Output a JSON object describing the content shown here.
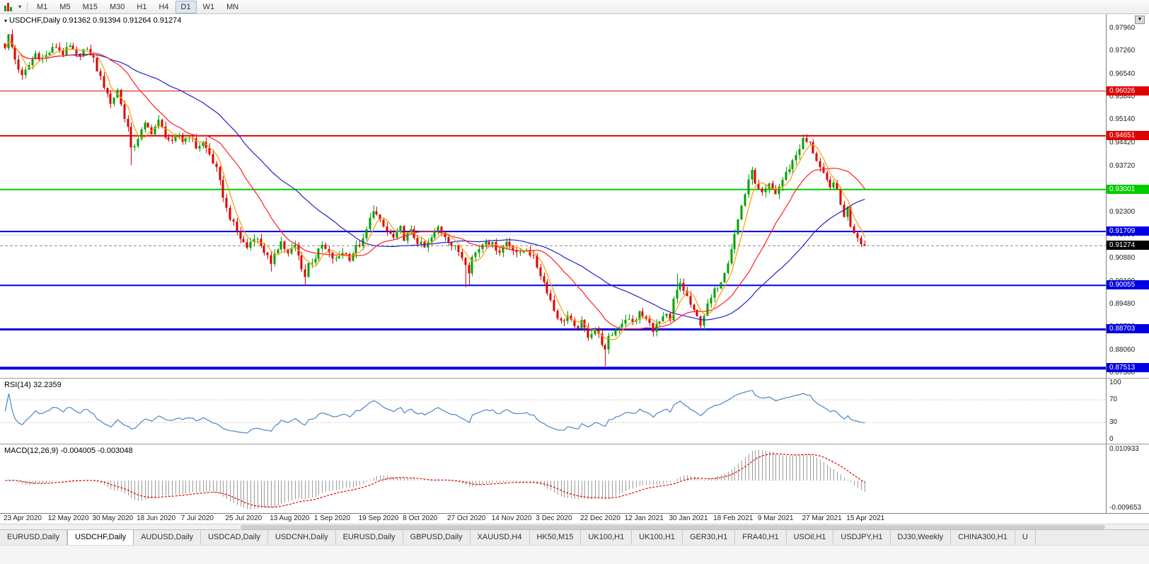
{
  "toolbar": {
    "timeframes": [
      "M1",
      "M5",
      "M15",
      "M30",
      "H1",
      "H4",
      "D1",
      "W1",
      "MN"
    ],
    "active_timeframe": "D1"
  },
  "chart": {
    "title": "USDCHF,Daily",
    "ohlc": "0.91362 0.91394 0.91264 0.91274"
  },
  "chart_data": {
    "type": "candlestick",
    "main": {
      "ylim": [
        0.873,
        0.983
      ],
      "axis_labels": [
        "0.97960",
        "0.97260",
        "0.96540",
        "0.95840",
        "0.95140",
        "0.94420",
        "0.93720",
        "0.93020",
        "0.92300",
        "0.91600",
        "0.90880",
        "0.90180",
        "0.89480",
        "0.88780",
        "0.88060",
        "0.87360"
      ],
      "hlines": [
        {
          "price": 0.96026,
          "label": "0.96026",
          "color": "#e00000",
          "width": 1
        },
        {
          "price": 0.94651,
          "label": "0.94651",
          "color": "#e00000",
          "width": 2
        },
        {
          "price": 0.93001,
          "label": "0.93001",
          "color": "#00cc00",
          "width": 2
        },
        {
          "price": 0.91709,
          "label": "0.91709",
          "color": "#0000e6",
          "width": 2
        },
        {
          "price": 0.90055,
          "label": "0.90055",
          "color": "#0000e6",
          "width": 2
        },
        {
          "price": 0.88703,
          "label": "0.88703",
          "color": "#0000e6",
          "width": 3
        },
        {
          "price": 0.87513,
          "label": "0.87513",
          "color": "#0000e6",
          "width": 4
        }
      ],
      "minor_line": {
        "price": 0.916,
        "color": "#d8d8d8"
      },
      "current_price": {
        "value": 0.91274,
        "label": "0.91274",
        "box_color": "#000000"
      },
      "num_candles": 253,
      "up_color": "#00a000",
      "down_color": "#de0000",
      "ma_colors": {
        "fast": "#ff9900",
        "mid": "#ff2020",
        "slow": "#2222cc"
      },
      "close_path": [
        [
          0,
          0.974
        ],
        [
          1,
          0.9772
        ],
        [
          3,
          0.97
        ],
        [
          5,
          0.9645
        ],
        [
          7,
          0.9682
        ],
        [
          9,
          0.9718
        ],
        [
          11,
          0.97
        ],
        [
          13,
          0.9722
        ],
        [
          15,
          0.974
        ],
        [
          17,
          0.9718
        ],
        [
          19,
          0.9738
        ],
        [
          21,
          0.971
        ],
        [
          23,
          0.9728
        ],
        [
          25,
          0.9718
        ],
        [
          26,
          0.97
        ],
        [
          28,
          0.964
        ],
        [
          30,
          0.9598
        ],
        [
          31,
          0.9562
        ],
        [
          33,
          0.9608
        ],
        [
          34,
          0.956
        ],
        [
          36,
          0.949
        ],
        [
          37,
          0.942
        ],
        [
          38,
          0.9438
        ],
        [
          39,
          0.946
        ],
        [
          41,
          0.9498
        ],
        [
          43,
          0.9478
        ],
        [
          45,
          0.9508
        ],
        [
          47,
          0.9468
        ],
        [
          49,
          0.944
        ],
        [
          51,
          0.9468
        ],
        [
          52,
          0.945
        ],
        [
          54,
          0.9468
        ],
        [
          56,
          0.943
        ],
        [
          58,
          0.9444
        ],
        [
          60,
          0.9408
        ],
        [
          62,
          0.936
        ],
        [
          63,
          0.932
        ],
        [
          64,
          0.9282
        ],
        [
          65,
          0.924
        ],
        [
          67,
          0.9192
        ],
        [
          69,
          0.915
        ],
        [
          71,
          0.9122
        ],
        [
          73,
          0.9158
        ],
        [
          75,
          0.913
        ],
        [
          77,
          0.9092
        ],
        [
          78,
          0.9062
        ],
        [
          79,
          0.9108
        ],
        [
          81,
          0.914
        ],
        [
          83,
          0.91
        ],
        [
          85,
          0.9128
        ],
        [
          87,
          0.9062
        ],
        [
          88,
          0.9032
        ],
        [
          89,
          0.9072
        ],
        [
          91,
          0.9092
        ],
        [
          93,
          0.9128
        ],
        [
          95,
          0.91
        ],
        [
          97,
          0.9082
        ],
        [
          99,
          0.911
        ],
        [
          101,
          0.909
        ],
        [
          103,
          0.9122
        ],
        [
          105,
          0.9142
        ],
        [
          107,
          0.9208
        ],
        [
          108,
          0.9242
        ],
        [
          110,
          0.9198
        ],
        [
          112,
          0.9172
        ],
        [
          114,
          0.915
        ],
        [
          116,
          0.918
        ],
        [
          117,
          0.9152
        ],
        [
          119,
          0.917
        ],
        [
          121,
          0.914
        ],
        [
          123,
          0.912
        ],
        [
          125,
          0.915
        ],
        [
          127,
          0.9184
        ],
        [
          129,
          0.916
        ],
        [
          131,
          0.913
        ],
        [
          133,
          0.911
        ],
        [
          135,
          0.9078
        ],
        [
          136,
          0.9052
        ],
        [
          137,
          0.9092
        ],
        [
          139,
          0.912
        ],
        [
          141,
          0.9148
        ],
        [
          143,
          0.913
        ],
        [
          145,
          0.9112
        ],
        [
          147,
          0.914
        ],
        [
          149,
          0.912
        ],
        [
          151,
          0.91
        ],
        [
          153,
          0.912
        ],
        [
          155,
          0.9088
        ],
        [
          157,
          0.904
        ],
        [
          159,
          0.899
        ],
        [
          161,
          0.893
        ],
        [
          163,
          0.8892
        ],
        [
          165,
          0.8912
        ],
        [
          167,
          0.8872
        ],
        [
          169,
          0.889
        ],
        [
          171,
          0.8852
        ],
        [
          173,
          0.8872
        ],
        [
          175,
          0.883
        ],
        [
          176,
          0.8802
        ],
        [
          177,
          0.8842
        ],
        [
          179,
          0.887
        ],
        [
          181,
          0.8892
        ],
        [
          182,
          0.8905
        ],
        [
          184,
          0.889
        ],
        [
          186,
          0.892
        ],
        [
          188,
          0.89
        ],
        [
          190,
          0.8872
        ],
        [
          192,
          0.8892
        ],
        [
          194,
          0.8912
        ],
        [
          195,
          0.8892
        ],
        [
          196,
          0.896
        ],
        [
          198,
          0.9012
        ],
        [
          200,
          0.897
        ],
        [
          202,
          0.8922
        ],
        [
          204,
          0.889
        ],
        [
          206,
          0.8942
        ],
        [
          208,
          0.8988
        ],
        [
          210,
          0.9022
        ],
        [
          212,
          0.9082
        ],
        [
          214,
          0.9162
        ],
        [
          216,
          0.9252
        ],
        [
          218,
          0.9322
        ],
        [
          219,
          0.9368
        ],
        [
          220,
          0.9312
        ],
        [
          222,
          0.9282
        ],
        [
          224,
          0.9312
        ],
        [
          226,
          0.9288
        ],
        [
          228,
          0.933
        ],
        [
          230,
          0.9368
        ],
        [
          232,
          0.9408
        ],
        [
          234,
          0.9452
        ],
        [
          236,
          0.944
        ],
        [
          238,
          0.9392
        ],
        [
          240,
          0.9342
        ],
        [
          242,
          0.9302
        ],
        [
          243,
          0.933
        ],
        [
          244,
          0.9292
        ],
        [
          245,
          0.9252
        ],
        [
          246,
          0.9222
        ],
        [
          247,
          0.9242
        ],
        [
          248,
          0.9192
        ],
        [
          249,
          0.9172
        ],
        [
          250,
          0.9156
        ],
        [
          251,
          0.914
        ],
        [
          252,
          0.9127
        ]
      ],
      "wick_overrides": [
        {
          "day": 2,
          "high": 0.9792
        },
        {
          "day": 37,
          "low": 0.9375
        },
        {
          "day": 78,
          "low": 0.9048
        },
        {
          "day": 88,
          "low": 0.9005
        },
        {
          "day": 108,
          "high": 0.9252
        },
        {
          "day": 135,
          "low": 0.9
        },
        {
          "day": 136,
          "low": 0.9008
        },
        {
          "day": 176,
          "low": 0.8757
        },
        {
          "day": 197,
          "high": 0.9042
        },
        {
          "day": 235,
          "high": 0.947
        }
      ]
    },
    "rsi": {
      "label": "RSI(14)",
      "value_text": "32.2359",
      "period": 14,
      "levels": [
        70,
        30
      ],
      "axis_labels": [
        {
          "text": "100",
          "value": 100
        },
        {
          "text": "70",
          "value": 70
        },
        {
          "text": "30",
          "value": 30
        },
        {
          "text": "0",
          "value": 0
        }
      ],
      "line_color": "#4a86c8",
      "level_color": "#c8c8c8"
    },
    "macd": {
      "label": "MACD(12,26,9)",
      "values_text": "-0.004005 -0.003048",
      "fast": 12,
      "slow": 26,
      "signal": 9,
      "ylim": [
        -0.009653,
        0.010933
      ],
      "axis_top_label": "0.010933",
      "axis_bottom_label": "-0.009653",
      "hist_color": "#9a9a9a",
      "signal_color": "#e00000"
    },
    "dates": [
      "23 Apr 2020",
      "12 May 2020",
      "30 May 2020",
      "18 Jun 2020",
      "7 Jul 2020",
      "25 Jul 2020",
      "13 Aug 2020",
      "1 Sep 2020",
      "19 Sep 2020",
      "8 Oct 2020",
      "27 Oct 2020",
      "14 Nov 2020",
      "3 Dec 2020",
      "22 Dec 2020",
      "12 Jan 2021",
      "30 Jan 2021",
      "18 Feb 2021",
      "9 Mar 2021",
      "27 Mar 2021",
      "15 Apr 2021"
    ]
  },
  "tabs": {
    "active_index": 1,
    "items": [
      "EURUSD,Daily",
      "USDCHF,Daily",
      "AUDUSD,Daily",
      "USDCAD,Daily",
      "USDCNH,Daily",
      "EURUSD,Daily",
      "GBPUSD,Daily",
      "XAUUSD,H4",
      "HK50,M15",
      "UK100,H1",
      "UK100,H1",
      "GER30,H1",
      "FRA40,H1",
      "USOil,H1",
      "USDJPY,H1",
      "DJ30,Weekly",
      "CHINA300,H1",
      "U"
    ]
  }
}
